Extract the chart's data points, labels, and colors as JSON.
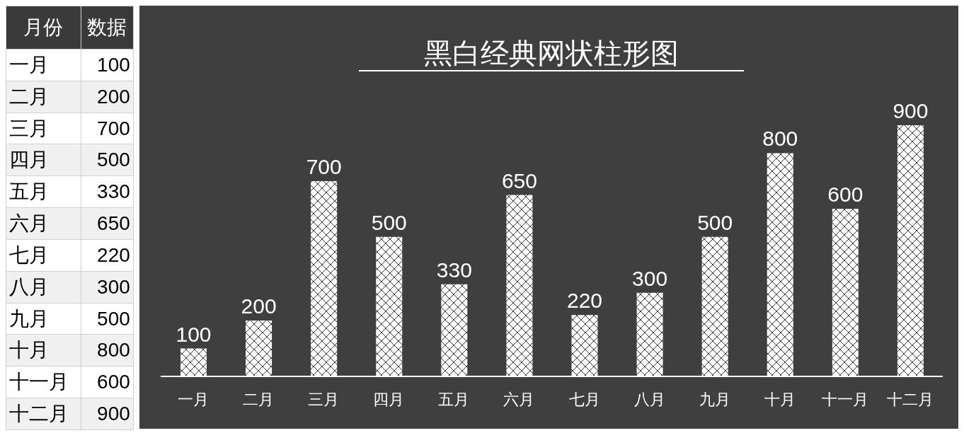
{
  "chart_data": [
    {
      "type": "other",
      "annotations": [
        "月份",
        "数据"
      ],
      "categories": [
        "一月",
        "二月",
        "三月",
        "四月",
        "五月",
        "六月",
        "七月",
        "八月",
        "九月",
        "十月",
        "十一月",
        "十二月"
      ],
      "values": [
        100,
        200,
        700,
        500,
        330,
        650,
        220,
        300,
        500,
        800,
        600,
        900
      ],
      "data_labels": true
    },
    {
      "type": "bar",
      "title": "黑白经典网状柱形图",
      "categories": [
        "一月",
        "二月",
        "三月",
        "四月",
        "五月",
        "六月",
        "七月",
        "八月",
        "九月",
        "十月",
        "十一月",
        "十二月"
      ],
      "values": [
        100,
        200,
        700,
        500,
        330,
        650,
        220,
        300,
        500,
        800,
        600,
        900
      ],
      "color": "#ffffff",
      "data_labels": true,
      "grid": false,
      "legend": false
    }
  ]
}
